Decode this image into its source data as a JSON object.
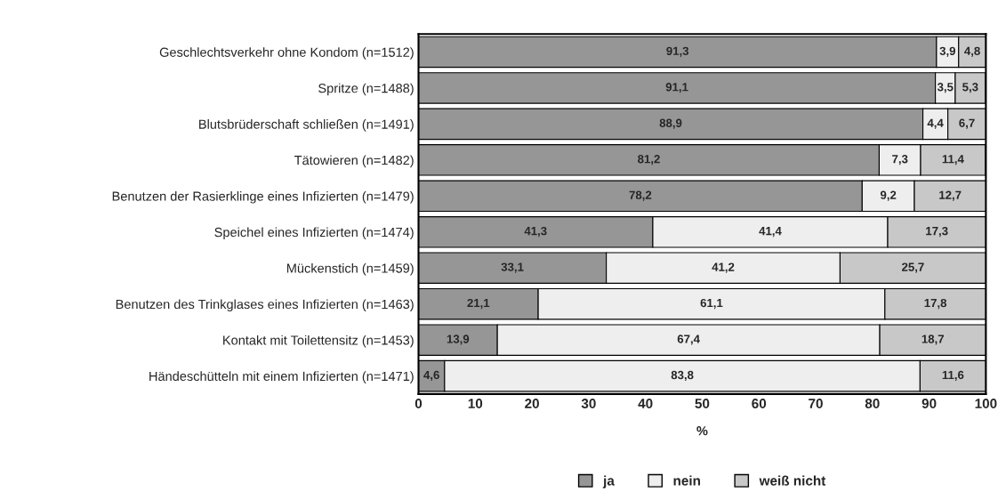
{
  "chart_data": {
    "type": "bar",
    "orientation": "horizontal",
    "stacked": true,
    "categories": [
      "Geschlechtsverkehr ohne Kondom (n=1512)",
      "Spritze (n=1488)",
      "Blutsbrüderschaft schließen (n=1491)",
      "Tätowieren (n=1482)",
      "Benutzen der Rasierklinge eines Infizierten (n=1479)",
      "Speichel eines Infizierten (n=1474)",
      "Mückenstich (n=1459)",
      "Benutzen des Trinkglases eines Infizierten (n=1463)",
      "Kontakt mit Toilettensitz (n=1453)",
      "Händeschütteln mit einem Infizierten (n=1471)"
    ],
    "series": [
      {
        "name": "ja",
        "color": "#969696",
        "values": [
          91.3,
          91.1,
          88.9,
          81.2,
          78.2,
          41.3,
          33.1,
          21.1,
          13.9,
          4.6
        ],
        "value_labels": [
          "91,3",
          "91,1",
          "88,9",
          "81,2",
          "78,2",
          "41,3",
          "33,1",
          "21,1",
          "13,9",
          "4,6"
        ]
      },
      {
        "name": "nein",
        "color": "#eeeeee",
        "values": [
          3.9,
          3.5,
          4.4,
          7.3,
          9.2,
          41.4,
          41.2,
          61.1,
          67.4,
          83.8
        ],
        "value_labels": [
          "3,9",
          "3,5",
          "4,4",
          "7,3",
          "9,2",
          "41,4",
          "41,2",
          "61,1",
          "67,4",
          "83,8"
        ]
      },
      {
        "name": "weiß nicht",
        "color": "#c8c8c8",
        "values": [
          4.8,
          5.3,
          6.7,
          11.4,
          12.7,
          17.3,
          25.7,
          17.8,
          18.7,
          11.6
        ],
        "value_labels": [
          "4,8",
          "5,3",
          "6,7",
          "11,4",
          "12,7",
          "17,3",
          "25,7",
          "17,8",
          "18,7",
          "11,6"
        ]
      }
    ],
    "xlabel": "%",
    "xlim": [
      0,
      100
    ],
    "xticks": [
      0,
      10,
      20,
      30,
      40,
      50,
      60,
      70,
      80,
      90,
      100
    ],
    "grid": false,
    "legend": "bottom"
  }
}
